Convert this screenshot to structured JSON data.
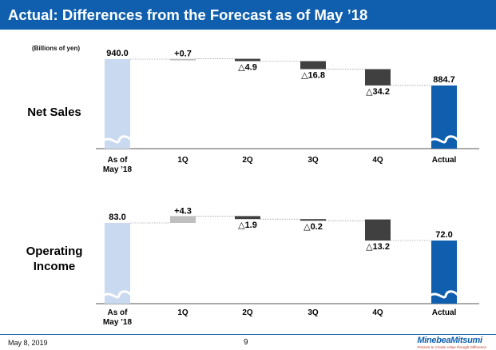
{
  "header": {
    "title": "Actual: Differences from the Forecast as of May ’18"
  },
  "unit_label": "(Billions of yen)",
  "footer": {
    "date": "May 8, 2019",
    "page": "9",
    "logo": "MinebeaMitsumi",
    "tagline": "Passion to Create Value through Difference"
  },
  "colors": {
    "title_bg": "#0f5fae",
    "forecast_bar": "#c9d9f0",
    "actual_bar": "#0f5fae",
    "negative_bar": "#404040",
    "positive_bar": "#bfbfbf"
  },
  "chart_data": [
    {
      "type": "bar",
      "subtype": "waterfall",
      "title": "Net Sales",
      "categories": [
        "As of\nMay ’18",
        "1Q",
        "2Q",
        "3Q",
        "4Q",
        "Actual"
      ],
      "start": 940.0,
      "deltas": [
        0.7,
        -4.9,
        -16.8,
        -34.2
      ],
      "end": 884.7,
      "data_labels": [
        "940.0",
        "+0.7",
        "△4.9",
        "△16.8",
        "△34.2",
        "884.7"
      ]
    },
    {
      "type": "bar",
      "subtype": "waterfall",
      "title": "Operating\nIncome",
      "categories": [
        "As of\nMay ’18",
        "1Q",
        "2Q",
        "3Q",
        "4Q",
        "Actual"
      ],
      "start": 83.0,
      "deltas": [
        4.3,
        -1.9,
        -0.2,
        -13.2
      ],
      "end": 72.0,
      "data_labels": [
        "83.0",
        "+4.3",
        "△1.9",
        "△0.2",
        "△13.2",
        "72.0"
      ]
    }
  ]
}
